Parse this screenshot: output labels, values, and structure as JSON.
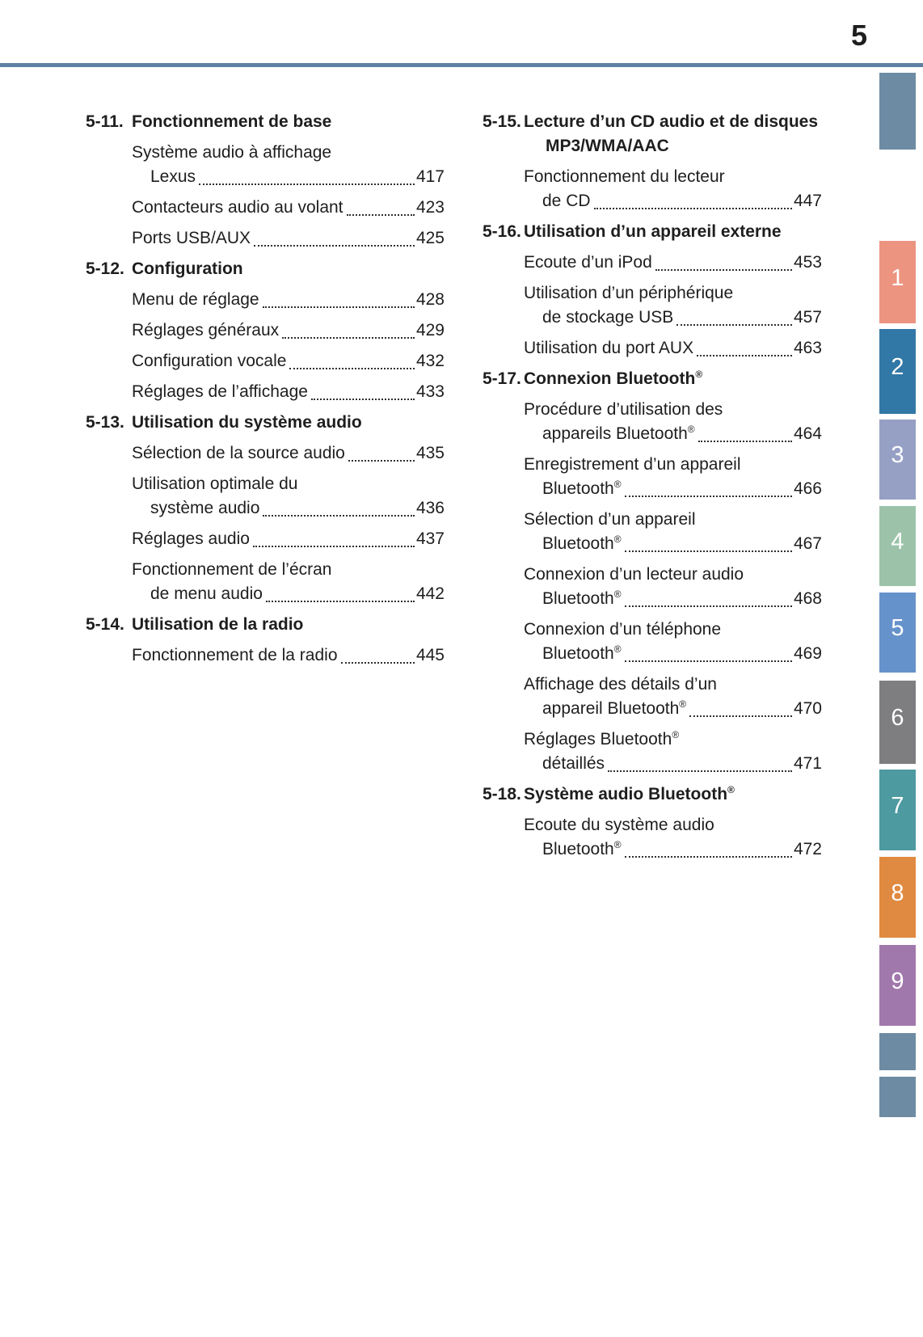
{
  "page": {
    "number": "5"
  },
  "header": {
    "rule_color": "#5e81a5"
  },
  "tabs": [
    {
      "label": "",
      "color": "#6d8ba3"
    },
    {
      "label": "1",
      "color": "#ec9480"
    },
    {
      "label": "2",
      "color": "#3278a6"
    },
    {
      "label": "3",
      "color": "#96a0c5"
    },
    {
      "label": "4",
      "color": "#9cc3a9"
    },
    {
      "label": "5",
      "color": "#6692cb"
    },
    {
      "label": "6",
      "color": "#7e7e81"
    },
    {
      "label": "7",
      "color": "#4d9aa0"
    },
    {
      "label": "8",
      "color": "#e08940"
    },
    {
      "label": "9",
      "color": "#a178ac"
    },
    {
      "label": "",
      "color": "#6d8ba3"
    },
    {
      "label": "",
      "color": "#6d8ba3"
    }
  ],
  "toc": {
    "columns": [
      {
        "sections": [
          {
            "id": "5-11.",
            "title_lines": [
              "Fonctionnement de base"
            ],
            "entries": [
              {
                "lines": [
                  "Système audio à affichage",
                  "Lexus"
                ],
                "page": "417"
              },
              {
                "lines": [
                  "Contacteurs audio au volant"
                ],
                "page": "423"
              },
              {
                "lines": [
                  "Ports USB/AUX"
                ],
                "page": "425"
              }
            ]
          },
          {
            "id": "5-12.",
            "title_lines": [
              "Configuration"
            ],
            "entries": [
              {
                "lines": [
                  "Menu de réglage"
                ],
                "page": "428"
              },
              {
                "lines": [
                  "Réglages généraux"
                ],
                "page": "429"
              },
              {
                "lines": [
                  "Configuration vocale"
                ],
                "page": "432"
              },
              {
                "lines": [
                  "Réglages de l’affichage"
                ],
                "page": "433"
              }
            ]
          },
          {
            "id": "5-13.",
            "title_lines": [
              "Utilisation du système audio"
            ],
            "entries": [
              {
                "lines": [
                  "Sélection de la source audio"
                ],
                "page": "435"
              },
              {
                "lines": [
                  "Utilisation optimale du",
                  "système audio"
                ],
                "page": "436"
              },
              {
                "lines": [
                  "Réglages audio"
                ],
                "page": "437"
              },
              {
                "lines": [
                  "Fonctionnement de l’écran",
                  "de menu audio"
                ],
                "page": "442"
              }
            ]
          },
          {
            "id": "5-14.",
            "title_lines": [
              "Utilisation de la radio"
            ],
            "entries": [
              {
                "lines": [
                  "Fonctionnement de la radio"
                ],
                "page": "445"
              }
            ]
          }
        ]
      },
      {
        "sections": [
          {
            "id": "5-15.",
            "title_lines": [
              "Lecture d’un CD audio et de disques",
              "MP3/WMA/AAC"
            ],
            "entries": [
              {
                "lines": [
                  "Fonctionnement du lecteur",
                  "de CD"
                ],
                "page": "447"
              }
            ]
          },
          {
            "id": "5-16.",
            "title_lines": [
              "Utilisation d’un appareil externe"
            ],
            "entries": [
              {
                "lines": [
                  "Ecoute d’un iPod"
                ],
                "page": "453"
              },
              {
                "lines": [
                  "Utilisation d’un périphérique",
                  "de stockage USB"
                ],
                "page": "457"
              },
              {
                "lines": [
                  "Utilisation du port AUX"
                ],
                "page": "463"
              }
            ]
          },
          {
            "id": "5-17.",
            "title_lines": [
              "Connexion Bluetooth®"
            ],
            "entries": [
              {
                "lines": [
                  "Procédure d’utilisation des",
                  "appareils Bluetooth®"
                ],
                "page": "464"
              },
              {
                "lines": [
                  "Enregistrement d’un appareil",
                  "Bluetooth®"
                ],
                "page": "466"
              },
              {
                "lines": [
                  "Sélection d’un appareil",
                  "Bluetooth®"
                ],
                "page": "467"
              },
              {
                "lines": [
                  "Connexion d’un lecteur audio",
                  "Bluetooth®"
                ],
                "page": "468"
              },
              {
                "lines": [
                  "Connexion d’un téléphone",
                  "Bluetooth®"
                ],
                "page": "469"
              },
              {
                "lines": [
                  "Affichage des détails d’un",
                  "appareil Bluetooth®"
                ],
                "page": "470"
              },
              {
                "lines": [
                  "Réglages Bluetooth®",
                  "détaillés"
                ],
                "page": "471"
              }
            ]
          },
          {
            "id": "5-18.",
            "title_lines": [
              "Système audio Bluetooth®"
            ],
            "entries": [
              {
                "lines": [
                  "Ecoute du système audio",
                  "Bluetooth®"
                ],
                "page": "472"
              }
            ]
          }
        ]
      }
    ]
  }
}
